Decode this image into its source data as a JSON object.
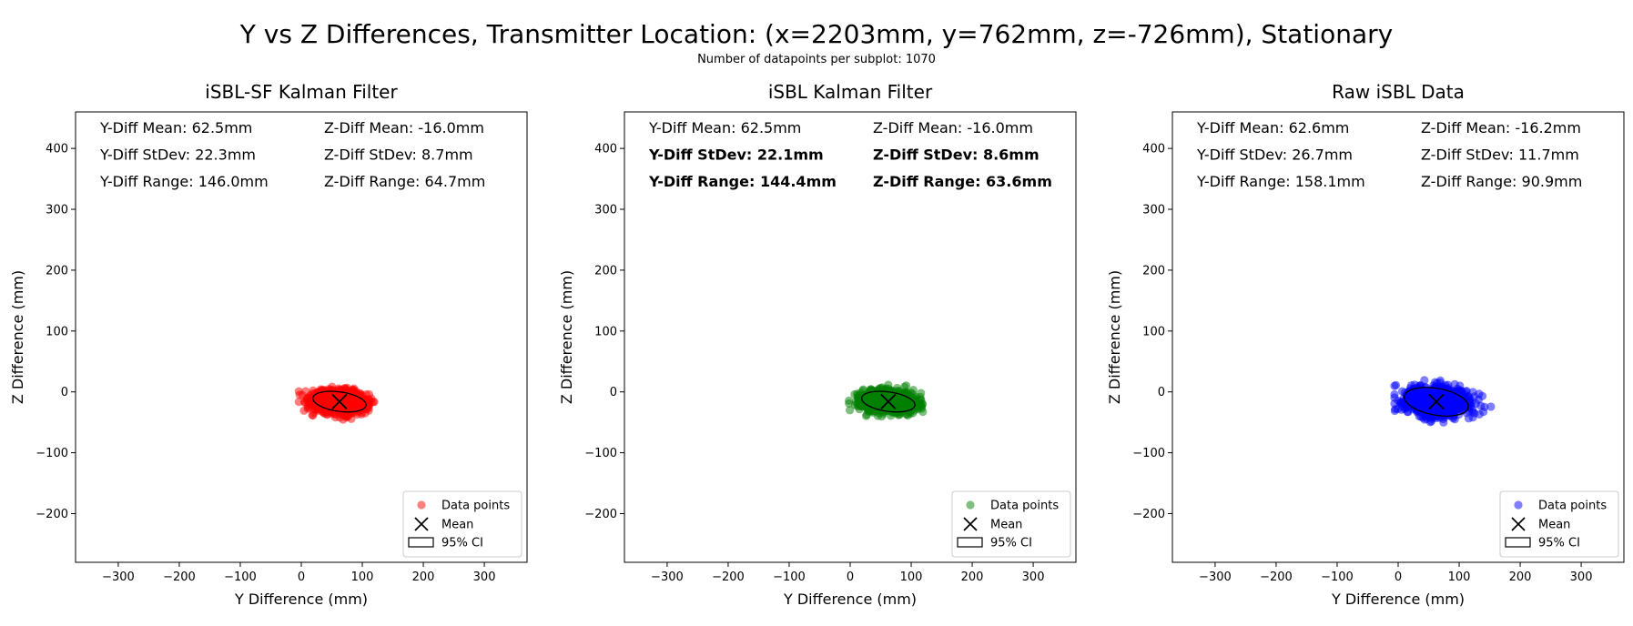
{
  "figure": {
    "title": "Y vs Z Differences, Transmitter Location: (x=2203mm, y=762mm, z=-726mm), Stationary",
    "subtitle": "Number of datapoints per subplot: 1070"
  },
  "chart_data": [
    {
      "type": "scatter",
      "title": "iSBL-SF Kalman Filter",
      "xlabel": "Y Difference (mm)",
      "ylabel": "Z Difference (mm)",
      "xlim": [
        -370,
        370
      ],
      "ylim": [
        -280,
        460
      ],
      "xticks": [
        -300,
        -200,
        -100,
        0,
        100,
        200,
        300
      ],
      "yticks": [
        -200,
        -100,
        0,
        100,
        200,
        300,
        400
      ],
      "xtick_labels": [
        "−300",
        "−200",
        "−100",
        "0",
        "100",
        "200",
        "300"
      ],
      "ytick_labels": [
        "−200",
        "−100",
        "0",
        "100",
        "200",
        "300",
        "400"
      ],
      "color": "#ff0000",
      "stats": {
        "y_mean": "Y-Diff Mean: 62.5mm",
        "z_mean": "Z-Diff Mean: -16.0mm",
        "y_std": "Y-Diff StDev: 22.3mm",
        "z_std": "Z-Diff StDev: 8.7mm",
        "y_range": "Y-Diff Range: 146.0mm",
        "z_range": "Z-Diff Range: 64.7mm",
        "bold": false
      },
      "points": {
        "count": 1070,
        "mean": [
          62.5,
          -16.0
        ],
        "std": [
          22.3,
          8.7
        ],
        "y_range": [
          -4,
          142
        ],
        "z_range": [
          -49,
          16
        ],
        "tilt_deg": -8
      },
      "mean_marker": [
        62.5,
        -16.0
      ],
      "ci_ellipse": {
        "center": [
          62.5,
          -16.0
        ],
        "semi_axes": [
          44,
          16
        ],
        "angle_deg": -8
      },
      "legend": {
        "location": "lower-right",
        "entries": [
          "Data points",
          "Mean",
          "95% CI"
        ]
      }
    },
    {
      "type": "scatter",
      "title": "iSBL Kalman Filter",
      "xlabel": "Y Difference (mm)",
      "ylabel": "Z Difference (mm)",
      "xlim": [
        -370,
        370
      ],
      "ylim": [
        -280,
        460
      ],
      "xticks": [
        -300,
        -200,
        -100,
        0,
        100,
        200,
        300
      ],
      "yticks": [
        -200,
        -100,
        0,
        100,
        200,
        300,
        400
      ],
      "xtick_labels": [
        "−300",
        "−200",
        "−100",
        "0",
        "100",
        "200",
        "300"
      ],
      "ytick_labels": [
        "−200",
        "−100",
        "0",
        "100",
        "200",
        "300",
        "400"
      ],
      "color": "#008000",
      "stats": {
        "y_mean": "Y-Diff Mean: 62.5mm",
        "z_mean": "Z-Diff Mean: -16.0mm",
        "y_std": "Y-Diff StDev: 22.1mm",
        "z_std": "Z-Diff StDev: 8.6mm",
        "y_range": "Y-Diff Range: 144.4mm",
        "z_range": "Z-Diff Range: 63.6mm",
        "bold": true
      },
      "points": {
        "count": 1070,
        "mean": [
          62.5,
          -16.0
        ],
        "std": [
          22.1,
          8.6
        ],
        "y_range": [
          -2,
          142
        ],
        "z_range": [
          -48,
          16
        ],
        "tilt_deg": -8
      },
      "mean_marker": [
        62.5,
        -16.0
      ],
      "ci_ellipse": {
        "center": [
          62.5,
          -16.0
        ],
        "semi_axes": [
          44,
          16
        ],
        "angle_deg": -8
      },
      "legend": {
        "location": "lower-right",
        "entries": [
          "Data points",
          "Mean",
          "95% CI"
        ]
      }
    },
    {
      "type": "scatter",
      "title": "Raw iSBL Data",
      "xlabel": "Y Difference (mm)",
      "ylabel": "Z Difference (mm)",
      "xlim": [
        -370,
        370
      ],
      "ylim": [
        -280,
        460
      ],
      "xticks": [
        -300,
        -200,
        -100,
        0,
        100,
        200,
        300
      ],
      "yticks": [
        -200,
        -100,
        0,
        100,
        200,
        300,
        400
      ],
      "xtick_labels": [
        "−300",
        "−200",
        "−100",
        "0",
        "100",
        "200",
        "300"
      ],
      "ytick_labels": [
        "−200",
        "−100",
        "0",
        "100",
        "200",
        "300",
        "400"
      ],
      "color": "#0000ff",
      "stats": {
        "y_mean": "Y-Diff Mean: 62.6mm",
        "z_mean": "Z-Diff Mean: -16.2mm",
        "y_std": "Y-Diff StDev: 26.7mm",
        "z_std": "Z-Diff StDev: 11.7mm",
        "y_range": "Y-Diff Range: 158.1mm",
        "z_range": "Z-Diff Range: 90.9mm",
        "bold": false
      },
      "points": {
        "count": 1070,
        "mean": [
          62.6,
          -16.2
        ],
        "std": [
          26.7,
          11.7
        ],
        "y_range": [
          -6,
          152
        ],
        "z_range": [
          -61,
          30
        ],
        "tilt_deg": -10
      },
      "mean_marker": [
        62.6,
        -16.2
      ],
      "ci_ellipse": {
        "center": [
          62.6,
          -16.2
        ],
        "semi_axes": [
          53,
          22
        ],
        "angle_deg": -10
      },
      "legend": {
        "location": "lower-right",
        "entries": [
          "Data points",
          "Mean",
          "95% CI"
        ]
      }
    }
  ]
}
